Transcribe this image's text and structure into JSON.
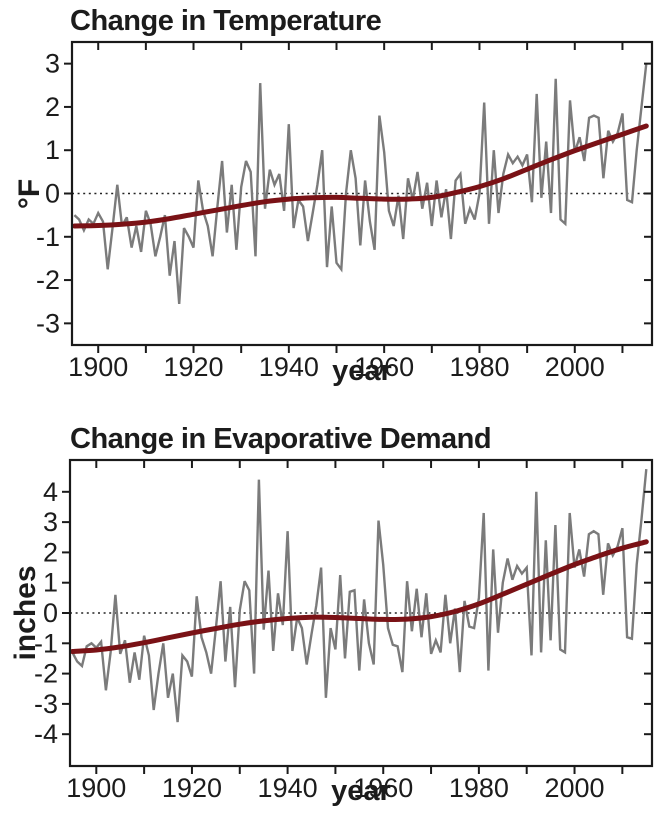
{
  "page": {
    "background": "#ffffff"
  },
  "chart_data": [
    {
      "type": "line",
      "title": "Change in Temperature",
      "xlabel": "year",
      "ylabel": "°F",
      "xlim": [
        1894.5,
        2016.2
      ],
      "ylim": [
        -3.5,
        3.5
      ],
      "yticks": [
        3,
        2,
        1,
        0,
        -1,
        -2,
        -3
      ],
      "xticks": [
        1900,
        1920,
        1940,
        1960,
        1980,
        2000
      ],
      "xticks_minor": [
        1910,
        1930,
        1950,
        1970,
        1990,
        2010
      ],
      "grid": "off",
      "legend": "none",
      "zero_reference_line": "dotted-black",
      "x_start": 1895,
      "x_step": 1,
      "series": [
        {
          "name": "annual",
          "color": "#7b7b7b",
          "width": 2.4,
          "values": [
            -0.5,
            -0.6,
            -0.85,
            -0.6,
            -0.7,
            -0.45,
            -0.65,
            -1.75,
            -0.8,
            0.2,
            -0.75,
            -0.55,
            -1.25,
            -0.75,
            -1.35,
            -0.4,
            -0.7,
            -1.45,
            -1.0,
            -0.5,
            -1.9,
            -1.1,
            -2.55,
            -0.8,
            -1.0,
            -1.25,
            0.3,
            -0.4,
            -0.75,
            -1.45,
            -0.3,
            0.75,
            -0.9,
            0.2,
            -1.3,
            0.15,
            0.75,
            0.5,
            -1.45,
            2.55,
            -0.35,
            0.55,
            0.2,
            0.45,
            -0.4,
            1.6,
            -0.8,
            -0.15,
            -0.3,
            -1.1,
            -0.45,
            0.2,
            1.0,
            -1.7,
            -0.3,
            -1.6,
            -1.75,
            0.0,
            1.0,
            0.35,
            -1.2,
            0.3,
            -0.65,
            -1.3,
            1.8,
            0.95,
            -0.4,
            -0.75,
            -0.05,
            -1.05,
            0.35,
            -0.15,
            0.5,
            -0.35,
            0.25,
            -0.75,
            0.3,
            -0.55,
            0.1,
            -1.05,
            0.3,
            0.45,
            -0.7,
            -0.35,
            -0.6,
            0.0,
            2.1,
            -0.7,
            1.0,
            -0.45,
            0.45,
            0.9,
            0.7,
            0.85,
            0.65,
            0.9,
            -0.2,
            2.3,
            -0.1,
            1.2,
            -0.45,
            2.65,
            -0.6,
            -0.7,
            2.15,
            0.95,
            1.3,
            0.75,
            1.75,
            1.8,
            1.75,
            0.35,
            1.45,
            1.2,
            1.4,
            1.85,
            -0.15,
            -0.2,
            1.0,
            2.0,
            3.0
          ]
        },
        {
          "name": "smoothed",
          "color": "#7a1216",
          "width": 5,
          "x": [
            1895,
            1900,
            1905,
            1910,
            1915,
            1920,
            1925,
            1930,
            1935,
            1940,
            1945,
            1950,
            1955,
            1960,
            1965,
            1970,
            1975,
            1980,
            1985,
            1990,
            1995,
            2000,
            2005,
            2010,
            2015
          ],
          "values": [
            -0.75,
            -0.74,
            -0.71,
            -0.66,
            -0.58,
            -0.48,
            -0.38,
            -0.28,
            -0.19,
            -0.13,
            -0.1,
            -0.09,
            -0.11,
            -0.13,
            -0.13,
            -0.09,
            0.02,
            0.16,
            0.34,
            0.56,
            0.78,
            0.99,
            1.18,
            1.37,
            1.56
          ]
        }
      ]
    },
    {
      "type": "line",
      "title": "Change in Evaporative Demand",
      "xlabel": "year",
      "ylabel": "inches",
      "xlim": [
        1894.5,
        2016.2
      ],
      "ylim": [
        -5.05,
        5.05
      ],
      "yticks": [
        4,
        3,
        2,
        1,
        0,
        -1,
        -2,
        -3,
        -4
      ],
      "xticks": [
        1900,
        1920,
        1940,
        1960,
        1980,
        2000
      ],
      "xticks_minor": [
        1910,
        1930,
        1950,
        1970,
        1990,
        2010
      ],
      "grid": "off",
      "legend": "none",
      "zero_reference_line": "dotted-black",
      "x_start": 1895,
      "x_step": 1,
      "series": [
        {
          "name": "annual",
          "color": "#7b7b7b",
          "width": 2.4,
          "values": [
            -1.3,
            -1.6,
            -1.75,
            -1.1,
            -1.0,
            -1.15,
            -0.95,
            -2.55,
            -1.3,
            0.6,
            -1.35,
            -0.9,
            -2.3,
            -1.3,
            -2.2,
            -0.75,
            -1.4,
            -3.2,
            -2.0,
            -1.0,
            -2.8,
            -2.0,
            -3.6,
            -1.4,
            -1.6,
            -2.1,
            0.55,
            -0.8,
            -1.3,
            -2.0,
            -0.5,
            1.05,
            -1.6,
            0.2,
            -2.45,
            0.1,
            1.05,
            0.75,
            -2.0,
            4.4,
            -0.55,
            1.4,
            -1.25,
            0.65,
            -0.4,
            2.7,
            -1.25,
            -0.15,
            -0.5,
            -1.7,
            -0.7,
            0.25,
            1.5,
            -2.8,
            -0.5,
            -1.2,
            1.25,
            -1.5,
            0.7,
            0.75,
            -1.9,
            0.45,
            -1.0,
            -1.7,
            3.05,
            1.6,
            -0.5,
            -1.05,
            -1.1,
            -1.95,
            1.05,
            -0.6,
            0.8,
            -0.8,
            0.65,
            -1.35,
            -0.9,
            -1.3,
            0.6,
            -1.0,
            0.15,
            -1.95,
            0.4,
            -0.45,
            -0.5,
            0.5,
            3.3,
            -1.9,
            2.1,
            -0.65,
            1.0,
            1.8,
            1.1,
            1.55,
            1.3,
            1.5,
            -1.4,
            4.0,
            -1.3,
            2.4,
            -0.9,
            2.9,
            -1.2,
            -1.3,
            3.3,
            1.5,
            2.1,
            1.2,
            2.6,
            2.7,
            2.6,
            0.6,
            2.3,
            1.9,
            2.2,
            2.8,
            -0.8,
            -0.85,
            1.6,
            3.1,
            4.75
          ]
        },
        {
          "name": "smoothed",
          "color": "#7a1216",
          "width": 5,
          "x": [
            1895,
            1900,
            1905,
            1910,
            1915,
            1920,
            1925,
            1930,
            1935,
            1940,
            1945,
            1950,
            1955,
            1960,
            1965,
            1970,
            1975,
            1980,
            1985,
            1990,
            1995,
            2000,
            2005,
            2010,
            2015
          ],
          "values": [
            -1.27,
            -1.22,
            -1.12,
            -0.98,
            -0.82,
            -0.66,
            -0.51,
            -0.37,
            -0.26,
            -0.18,
            -0.14,
            -0.15,
            -0.18,
            -0.21,
            -0.2,
            -0.12,
            0.05,
            0.3,
            0.62,
            0.95,
            1.28,
            1.6,
            1.88,
            2.14,
            2.35
          ]
        }
      ]
    }
  ],
  "style": {
    "axis_color": "#1a1a1a",
    "tick_label_color": "#1c1c1c",
    "annual_line_color": "#7b7b7b",
    "smoothed_line_color": "#7a1216",
    "zero_line_color": "#222222"
  }
}
